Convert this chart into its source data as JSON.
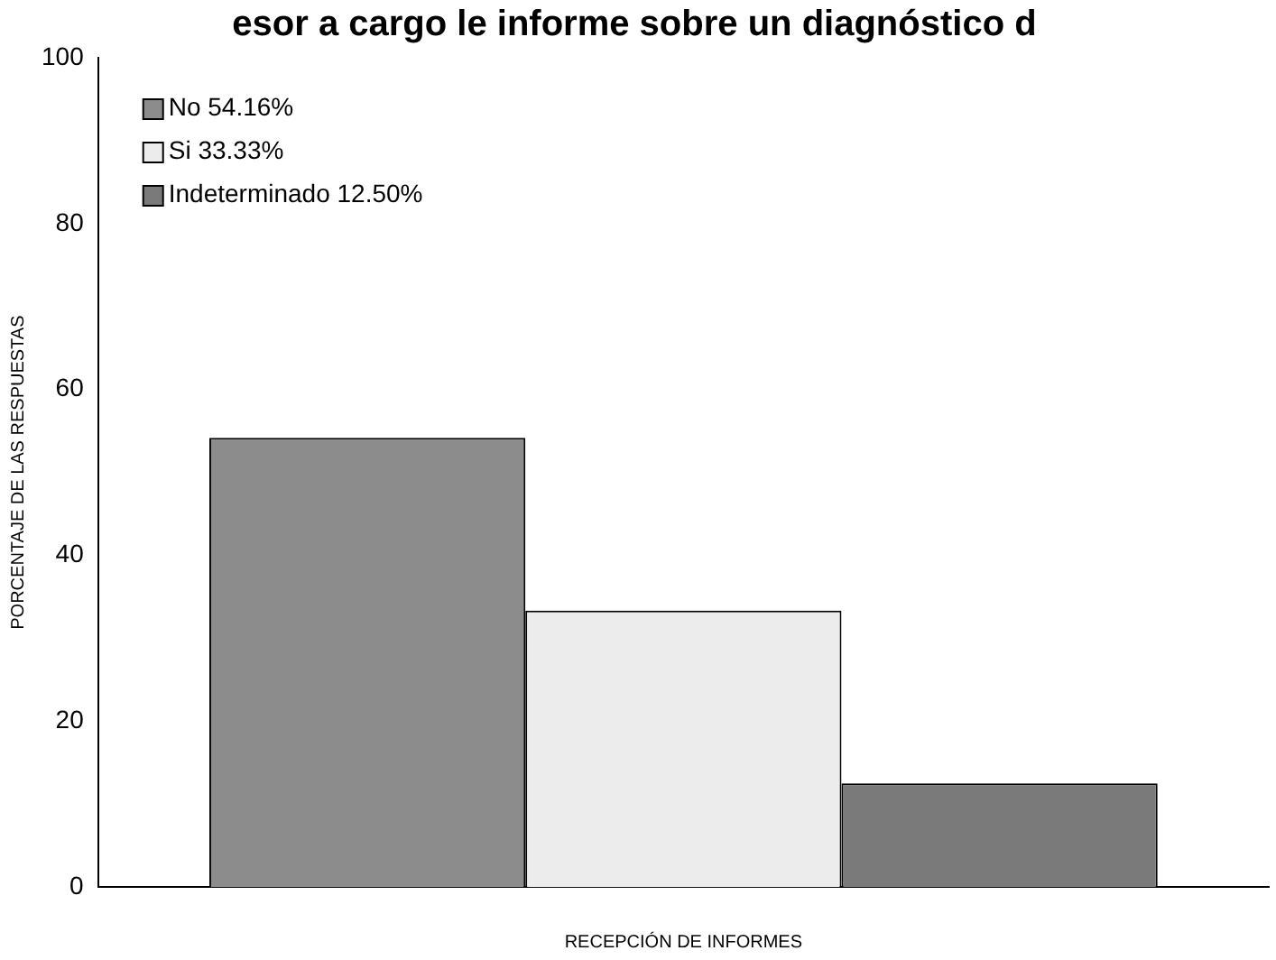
{
  "chart_data": {
    "type": "bar",
    "title": "esor a cargo le informe sobre un diagnóstico d",
    "xlabel": "RECEPCIÓN DE INFORMES",
    "ylabel": "PORCENTAJE DE LAS RESPUESTAS",
    "categories": [
      null
    ],
    "series": [
      {
        "name": "No 54.16%",
        "color": "#8c8c8c",
        "values": [
          54.16
        ]
      },
      {
        "name": "Si 33.33%",
        "color": "#ececec",
        "values": [
          33.33
        ]
      },
      {
        "name": "Indeterminado 12.50%",
        "color": "#7a7a7a",
        "values": [
          12.5
        ]
      }
    ],
    "ylim": [
      0,
      100
    ],
    "yticks": [
      0,
      20,
      40,
      60,
      80,
      100
    ],
    "grid": false,
    "legend": "top left"
  }
}
